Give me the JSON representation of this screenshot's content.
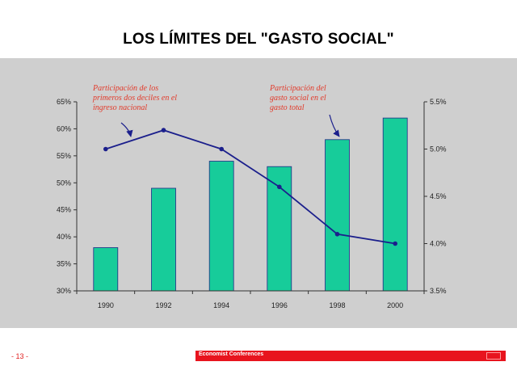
{
  "slide": {
    "title": "LOS LÍMITES DEL \"GASTO SOCIAL\"",
    "page_number": "- 13 -",
    "footer_brand": "Economist Conferences"
  },
  "colors": {
    "panel": "#cfcfcf",
    "bar_fill": "#17cc9a",
    "bar_stroke": "#1f2a86",
    "line": "#1b1f8c",
    "annotation": "#e23a2a",
    "footer": "#e8141e"
  },
  "chart_data": {
    "type": "bar",
    "categories": [
      "1990",
      "1992",
      "1994",
      "1996",
      "1998",
      "2000"
    ],
    "series": [
      {
        "chart_type": "bar",
        "axis": "left",
        "values": [
          38,
          49,
          54,
          53,
          58,
          62
        ]
      },
      {
        "chart_type": "line",
        "axis": "right",
        "values": [
          5.0,
          5.2,
          5.0,
          4.6,
          4.1,
          4.0
        ]
      }
    ],
    "y_left": {
      "ylim": [
        30,
        65
      ],
      "ticks": [
        "30%",
        "35%",
        "40%",
        "45%",
        "50%",
        "55%",
        "60%",
        "65%"
      ]
    },
    "y_right": {
      "ylim": [
        3.5,
        5.5
      ],
      "ticks": [
        "3.5%",
        "4.0%",
        "4.5%",
        "5.0%",
        "5.5%"
      ]
    },
    "annotations": [
      {
        "lines": [
          "Participación de los",
          "primeros dos deciles en el",
          "ingreso nacional"
        ],
        "points_to": "line"
      },
      {
        "lines": [
          "Participación del",
          "gasto social en el",
          "gasto total"
        ],
        "points_to": "bars"
      }
    ],
    "grid": false,
    "legend": "none"
  }
}
